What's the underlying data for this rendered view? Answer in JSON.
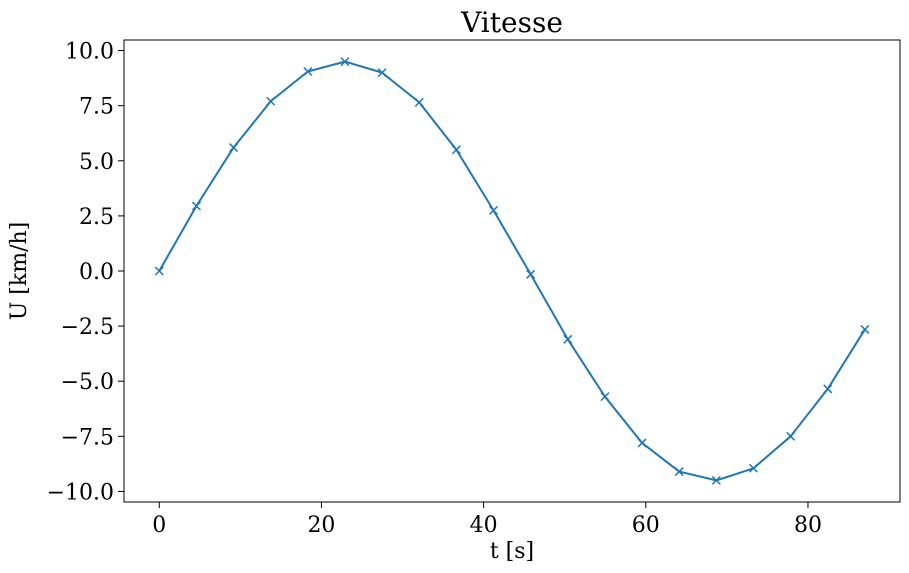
{
  "chart_data": {
    "type": "line",
    "title": "Vitesse",
    "xlabel": "t [s]",
    "ylabel": "U [km/h]",
    "xlim": [
      -4.35,
      91.35
    ],
    "ylim": [
      -10.48,
      10.48
    ],
    "xticks": [
      0,
      20,
      40,
      60,
      80
    ],
    "xtick_labels": [
      "0",
      "20",
      "40",
      "60",
      "80"
    ],
    "yticks": [
      10,
      7.5,
      5,
      2.5,
      0,
      -2.5,
      -5,
      -7.5,
      -10
    ],
    "ytick_labels": [
      "10.0",
      "7.5",
      "5.0",
      "2.5",
      "0.0",
      "−2.5",
      "−5.0",
      "−7.5",
      "−10.0"
    ],
    "grid": false,
    "series": [
      {
        "color": "#1f77b4",
        "marker": "x",
        "x": [
          0,
          4.58,
          9.16,
          13.74,
          18.32,
          22.9,
          27.48,
          32.06,
          36.64,
          41.22,
          45.8,
          50.38,
          54.96,
          59.54,
          64.12,
          68.7,
          73.28,
          77.86,
          82.44,
          87.02
        ],
        "y": [
          0.0,
          2.95,
          5.6,
          7.7,
          9.05,
          9.5,
          9.0,
          7.65,
          5.5,
          2.75,
          -0.15,
          -3.1,
          -5.7,
          -7.8,
          -9.1,
          -9.5,
          -8.95,
          -7.5,
          -5.35,
          -2.65
        ]
      }
    ]
  }
}
